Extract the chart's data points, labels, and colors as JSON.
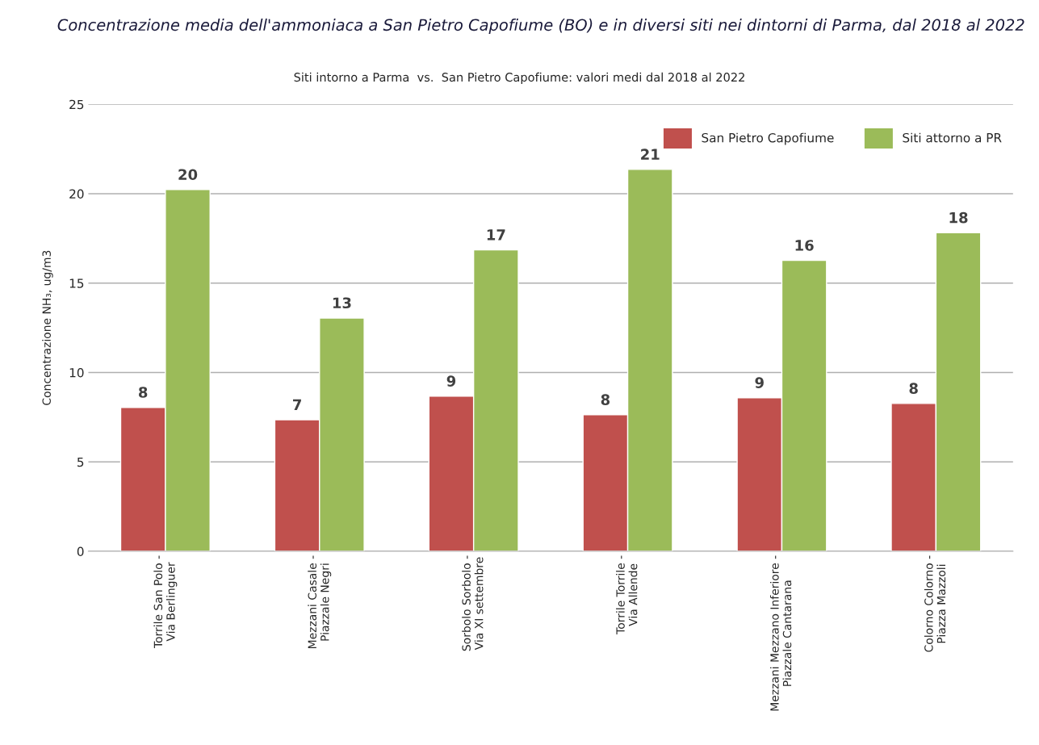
{
  "chart_data": {
    "type": "bar",
    "title": "Concentrazione media dell'ammoniaca a San Pietro Capofiume (BO) e in diversi siti nei dintorni di Parma, dal 2018 al 2022",
    "subtitle": "Siti intorno a Parma  vs.  San Pietro Capofiume: valori medi dal 2018 al 2022",
    "ylabel": "Concentrazione NH₃, ug/m3",
    "categories": [
      "Torrile San Polo -\nVia Berlinguer",
      "Mezzani Casale -\nPiazzale Negri",
      "Sorbolo Sorbolo -\nVia XI settembre",
      "Torrile Torrile -\nVia Allende",
      "Mezzani Mezzano Inferiore -\nPiazzale Cantarana",
      "Colorno Colorno -\nPiazza Mazzoli"
    ],
    "series": [
      {
        "name": "San Pietro Capofiume",
        "color": "#c0504d",
        "values": [
          8.05,
          7.36,
          8.68,
          7.64,
          8.59,
          8.27
        ],
        "value_labels": [
          "8",
          "7",
          "9",
          "8",
          "9",
          "8"
        ]
      },
      {
        "name": "Siti attorno a PR",
        "color": "#9bbb59",
        "values": [
          20.23,
          13.05,
          16.86,
          21.36,
          16.27,
          17.82
        ],
        "value_labels": [
          "20",
          "13",
          "17",
          "21",
          "16",
          "18"
        ]
      }
    ],
    "ylim": [
      0,
      25
    ],
    "yticks": [
      0,
      5,
      10,
      15,
      20,
      25
    ],
    "grid": "y",
    "legend": "top right"
  }
}
